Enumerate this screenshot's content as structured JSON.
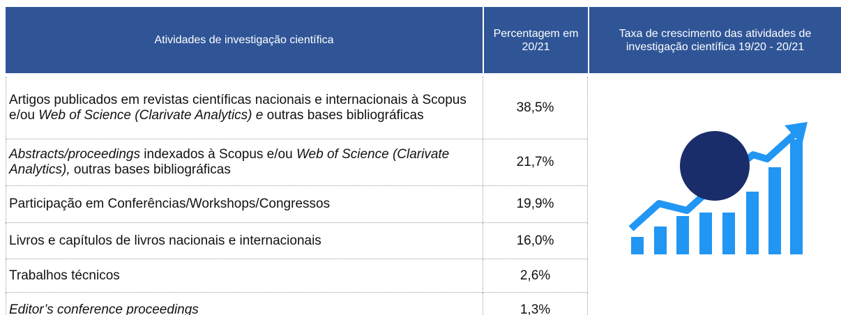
{
  "table": {
    "header": [
      "Atividades de investigação científica",
      "Percentagem em 20/21",
      "Taxa de crescimento das atividades de investigação científica 19/20 - 20/21"
    ],
    "rows": [
      {
        "activity": [
          {
            "text": "Artigos publicados em revistas científicas nacionais e internacionais à Scopus e/ou ",
            "italic": false
          },
          {
            "text": "Web of Science (Clarivate Analytics) e",
            "italic": true
          },
          {
            "text": " outras bases bibliográficas",
            "italic": false
          }
        ],
        "percentage": "38,5%"
      },
      {
        "activity": [
          {
            "text": "Abstracts/proceedings",
            "italic": true
          },
          {
            "text": " indexados à Scopus e/ou ",
            "italic": false
          },
          {
            "text": "Web of Science (Clarivate Analytics),",
            "italic": true
          },
          {
            "text": " outras bases bibliográficas",
            "italic": false
          }
        ],
        "percentage": "21,7%"
      },
      {
        "activity": [
          {
            "text": "Participação em Conferências/Workshops/Congressos",
            "italic": false
          }
        ],
        "percentage": "19,9%"
      },
      {
        "activity": [
          {
            "text": "Livros e capítulos de livros nacionais e internacionais",
            "italic": false
          }
        ],
        "percentage": "16,0%"
      },
      {
        "activity": [
          {
            "text": "Trabalhos técnicos",
            "italic": false
          }
        ],
        "percentage": "2,6%"
      },
      {
        "activity": [
          {
            "text": "Editor’s conference proceedings",
            "italic": true
          }
        ],
        "percentage": "1,3%"
      }
    ]
  }
}
